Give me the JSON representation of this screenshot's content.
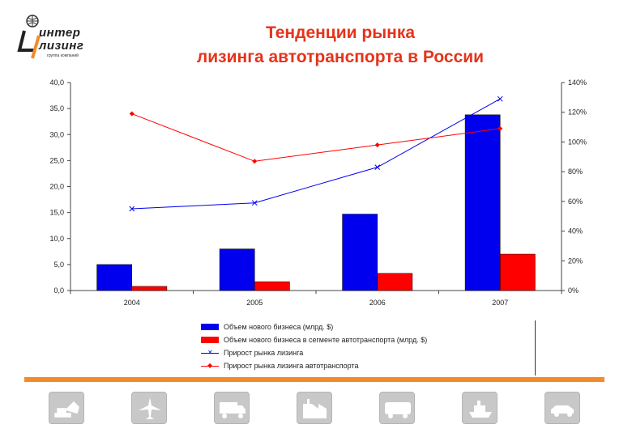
{
  "logo": {
    "line1": "интер",
    "line2": "лизинг",
    "subtitle": "группа компаний"
  },
  "header": {
    "title_line1": "Тенденции рынка",
    "title_line2": "лизинга автотранспорта в России"
  },
  "colors": {
    "title": "#e5331b",
    "series_blue": "#0000ee",
    "series_red": "#ff0000",
    "accent_orange": "#f28c28",
    "icon_tile": "#c8c8c8"
  },
  "chart_data": {
    "type": "bar",
    "categories": [
      "2004",
      "2005",
      "2006",
      "2007"
    ],
    "ylim": [
      0,
      40
    ],
    "yticks": [
      "0,0",
      "5,0",
      "10,0",
      "15,0",
      "20,0",
      "25,0",
      "30,0",
      "35,0",
      "40,0"
    ],
    "y2lim": [
      0,
      140
    ],
    "y2ticks": [
      "0%",
      "20%",
      "40%",
      "60%",
      "80%",
      "100%",
      "120%",
      "140%"
    ],
    "grid": false,
    "legend_position": "bottom",
    "series": [
      {
        "name": "Объем нового бизнеса (млрд. $)",
        "kind": "bar",
        "axis": "left",
        "values": [
          5.0,
          8.0,
          14.7,
          33.8
        ]
      },
      {
        "name": "Объем нового бизнеса в сегменте автотранспорта (млрд. $)",
        "kind": "bar",
        "axis": "left",
        "values": [
          0.8,
          1.7,
          3.3,
          7.0
        ]
      },
      {
        "name": "Прирост рынка лизинга",
        "kind": "line",
        "axis": "right",
        "marker": "x",
        "values": [
          55,
          59,
          83,
          129
        ]
      },
      {
        "name": "Прирост рынка лизинга автотранспорта",
        "kind": "line",
        "axis": "right",
        "marker": "diamond",
        "values": [
          119,
          87,
          98,
          109
        ]
      }
    ]
  },
  "icons": [
    "excavator-icon",
    "airplane-icon",
    "truck-icon",
    "factory-icon",
    "bus-icon",
    "ship-icon",
    "car-icon"
  ]
}
